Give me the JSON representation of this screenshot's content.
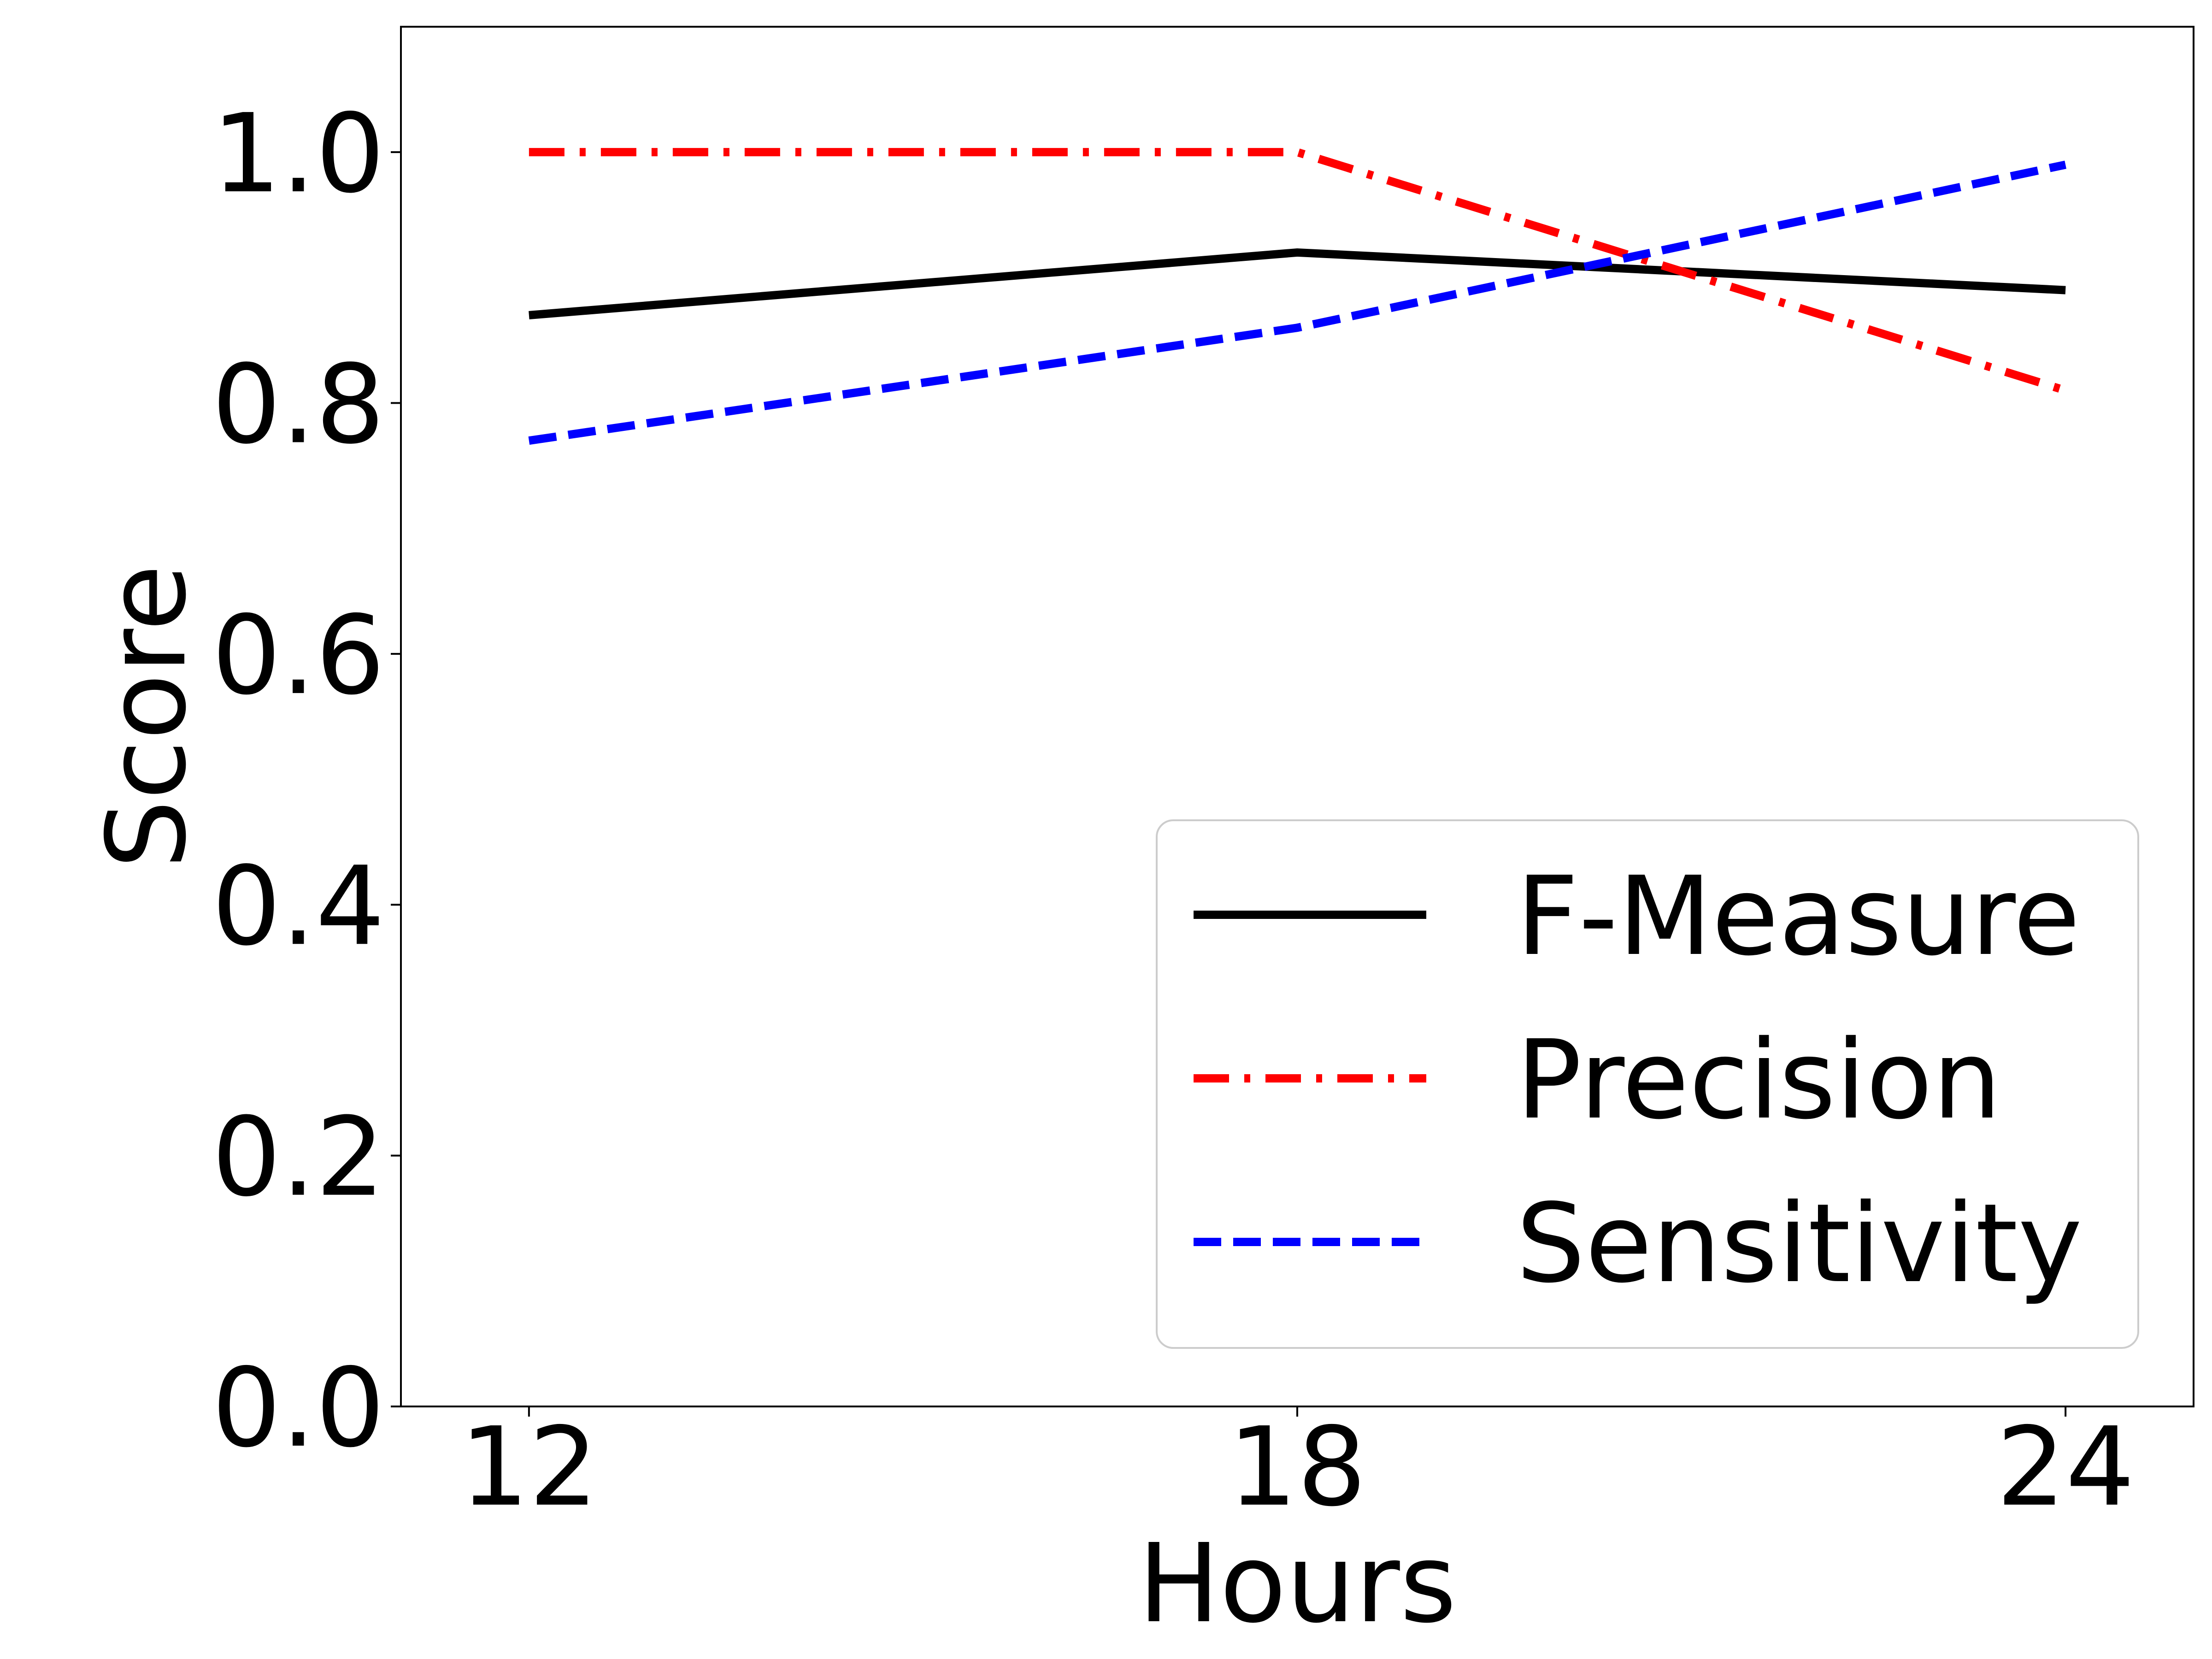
{
  "chart_data": {
    "type": "line",
    "x": [
      12,
      18,
      24
    ],
    "xticks": [
      "12",
      "18",
      "24"
    ],
    "xlabel": "Hours",
    "ylabel": "Score",
    "ylim": [
      0.0,
      1.1
    ],
    "yticks": [
      "0.0",
      "0.2",
      "0.4",
      "0.6",
      "0.8",
      "1.0"
    ],
    "grid": false,
    "legend_position": "lower-right",
    "series": [
      {
        "name": "F-Measure",
        "values": [
          0.87,
          0.92,
          0.89
        ],
        "color": "#000000",
        "style": "solid"
      },
      {
        "name": "Precision",
        "values": [
          1.0,
          1.0,
          0.81
        ],
        "color": "#ff0000",
        "style": "dashdot"
      },
      {
        "name": "Sensitivity",
        "values": [
          0.77,
          0.86,
          0.99
        ],
        "color": "#0000ff",
        "style": "dashed"
      }
    ]
  }
}
